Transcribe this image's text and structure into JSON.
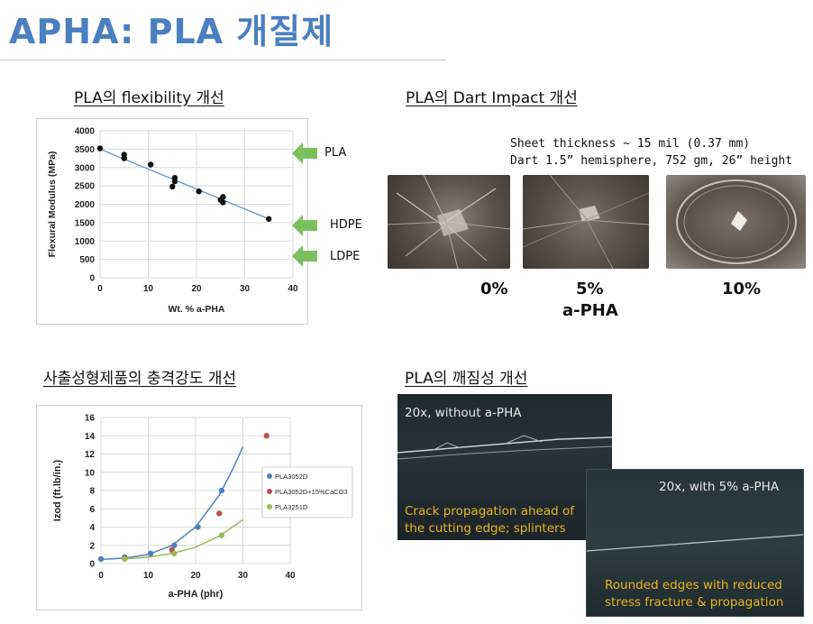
{
  "header": {
    "title": "APHA: PLA 개질제"
  },
  "sections": {
    "flex": "PLA의 flexibility 개선",
    "dart": "PLA의 Dart Impact 개선",
    "izod": "사출성형제품의 충격강도 개선",
    "brittle": "PLA의 깨짐성 개선"
  },
  "flex_markers": [
    "PLA",
    "HDPE",
    "LDPE"
  ],
  "dart": {
    "note1": "Sheet thickness ~ 15 mil (0.37 mm)",
    "note2": "Dart 1.5” hemisphere, 752 gm, 26” height",
    "labels": [
      "0%",
      "5%",
      "10%"
    ],
    "axis": "a-PHA"
  },
  "micro": {
    "left_title": "20x, without a-PHA",
    "left_caption1": "Crack propagation ahead of",
    "left_caption2": "the cutting edge; splinters",
    "right_title": "20x,  with 5% a-PHA",
    "right_caption1": "Rounded edges with reduced",
    "right_caption2": "stress fracture & propagation"
  },
  "colors": {
    "title": "#4a7fc0",
    "trend": "#6a9ad0",
    "pla3052d": "#4f81bd",
    "pla3052d_caco3": "#c0504d",
    "pla3251d": "#9bbb59",
    "arrow": "#7cc05e"
  },
  "chart_data": [
    {
      "type": "scatter",
      "title": "",
      "xlabel": "Wt. % a-PHA",
      "ylabel": "Flexural Modulus (MPa)",
      "xlim": [
        0,
        40
      ],
      "ylim": [
        0,
        4000
      ],
      "xticks": [
        "0",
        "10",
        "20",
        "30",
        "40"
      ],
      "yticks": [
        "0",
        "500",
        "1000",
        "1500",
        "2000",
        "2500",
        "3000",
        "3500",
        "4000"
      ],
      "x": [
        0,
        5,
        5,
        10.5,
        15,
        15.5,
        15.5,
        20.5,
        25,
        25.5,
        25.5,
        35
      ],
      "y": [
        3520,
        3350,
        3250,
        3080,
        2480,
        2620,
        2720,
        2350,
        2120,
        2050,
        2200,
        1600
      ],
      "trendline": [
        [
          0,
          3500
        ],
        [
          35,
          1600
        ]
      ],
      "grid": true
    },
    {
      "type": "scatter",
      "title": "",
      "xlabel": "a-PHA (phr)",
      "ylabel": "Izod  (ft.lb/in.)",
      "xlim": [
        0,
        40
      ],
      "ylim": [
        0,
        16
      ],
      "xticks": [
        "0",
        "10",
        "20",
        "30",
        "40"
      ],
      "yticks": [
        "0",
        "2",
        "4",
        "6",
        "8",
        "10",
        "12",
        "14",
        "16"
      ],
      "legend_position": "right",
      "grid": true,
      "series": [
        {
          "name": "PLA3052D",
          "color": "#4f81bd",
          "x": [
            0,
            5,
            10.5,
            15.5,
            20.5,
            25.5
          ],
          "y": [
            0.5,
            0.7,
            1.1,
            2.0,
            4.0,
            8.0
          ],
          "curve": [
            [
              0,
              0.45
            ],
            [
              5,
              0.6
            ],
            [
              10,
              1.0
            ],
            [
              15,
              2.0
            ],
            [
              20,
              4.0
            ],
            [
              25,
              7.5
            ],
            [
              28,
              10.5
            ],
            [
              30,
              12.8
            ]
          ]
        },
        {
          "name": "PLA3052D+15%CaCO3",
          "color": "#c0504d",
          "x": [
            5,
            15,
            25,
            35
          ],
          "y": [
            0.6,
            1.5,
            5.5,
            14.0
          ],
          "curve": []
        },
        {
          "name": "PLA3251D",
          "color": "#9bbb59",
          "x": [
            5,
            15.5,
            25.5
          ],
          "y": [
            0.5,
            1.1,
            3.1
          ],
          "curve": [
            [
              5,
              0.5
            ],
            [
              10,
              0.7
            ],
            [
              15,
              1.1
            ],
            [
              20,
              1.8
            ],
            [
              25,
              3.0
            ],
            [
              30,
              4.8
            ]
          ]
        }
      ]
    }
  ]
}
